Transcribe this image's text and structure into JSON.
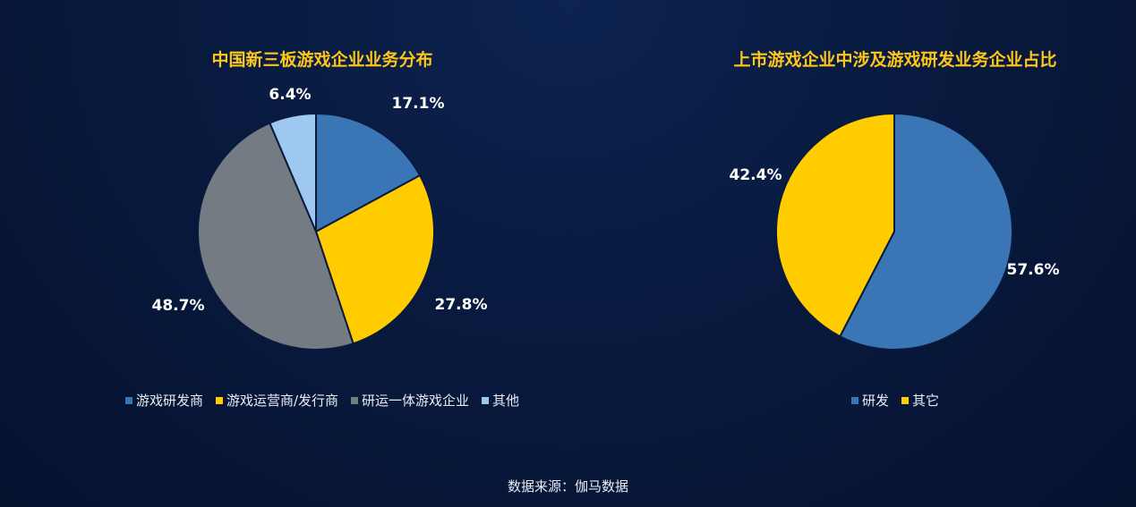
{
  "chart_data": [
    {
      "type": "pie",
      "title": "中国新三板游戏企业业务分布",
      "categories": [
        "游戏研发商",
        "游戏运营商/发行商",
        "研运一体游戏企业",
        "其他"
      ],
      "values": [
        17.1,
        27.8,
        48.7,
        6.4
      ],
      "labels": [
        "17.1%",
        "27.8%",
        "48.7%",
        "6.4%"
      ],
      "colors": [
        "#3a76b6",
        "#ffcc00",
        "#757b82",
        "#9fc8f0"
      ],
      "legend": "bottom"
    },
    {
      "type": "pie",
      "title": "上市游戏企业中涉及游戏研发业务企业占比",
      "categories": [
        "研发",
        "其它"
      ],
      "values": [
        57.6,
        42.4
      ],
      "labels": [
        "57.6%",
        "42.4%"
      ],
      "colors": [
        "#3a76b6",
        "#ffcc00"
      ],
      "legend": "bottom"
    }
  ],
  "source": "数据来源：伽马数据"
}
